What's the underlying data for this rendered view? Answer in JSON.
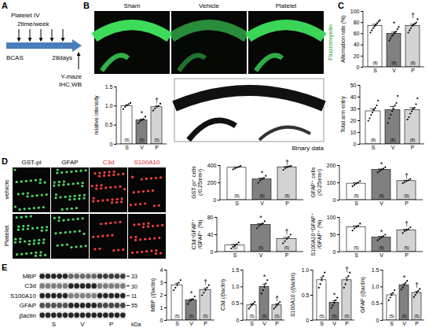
{
  "chart_data": [
    {
      "type": "bar",
      "y_label": "relative intensity",
      "categories": [
        "S",
        "V",
        "P"
      ],
      "values": [
        1.0,
        0.63,
        0.97
      ],
      "errors": [
        0.03,
        0.03,
        0.03
      ],
      "points": [
        [
          0.92,
          0.98,
          1.02,
          1.05,
          1.08
        ],
        [
          0.55,
          0.6,
          0.63,
          0.66,
          0.72
        ],
        [
          0.88,
          0.93,
          0.98,
          1.0,
          1.06
        ]
      ],
      "n_labels": [
        "(5)",
        "(5)",
        "(5)"
      ],
      "significance": [
        null,
        "*",
        "†"
      ],
      "colors": [
        "#ffffff",
        "#808080",
        "#d3d3d3"
      ],
      "ylim": [
        0,
        1.5
      ],
      "yticks": [
        0,
        0.5,
        {
          "value": 1,
          "label": "1.0"
        },
        1.5
      ]
    },
    {
      "type": "bar",
      "y_label": "Alternation rate (%)",
      "categories": [
        "S",
        "V",
        "P"
      ],
      "values": [
        74,
        60,
        74
      ],
      "errors": [
        3,
        3,
        3
      ],
      "points": [
        [
          62,
          66,
          70,
          73,
          76,
          79,
          82,
          84
        ],
        [
          48,
          52,
          56,
          58,
          62,
          64,
          68,
          72
        ],
        [
          62,
          66,
          70,
          74,
          76,
          78,
          80,
          86
        ]
      ],
      "n_labels": [
        "(8)",
        "(8)",
        "(8)"
      ],
      "significance": [
        null,
        "*",
        "†"
      ],
      "colors": [
        "#ffffff",
        "#808080",
        "#d3d3d3"
      ],
      "ylim": [
        0,
        100
      ],
      "yticks": [
        0,
        20,
        40,
        60,
        80,
        100
      ]
    },
    {
      "type": "bar",
      "y_label": "Total arm entry",
      "categories": [
        "S",
        "V",
        "P"
      ],
      "values": [
        28,
        29,
        29
      ],
      "errors": [
        2,
        3,
        2
      ],
      "points": [
        [
          20,
          22,
          25,
          27,
          29,
          31,
          33,
          37
        ],
        [
          18,
          22,
          25,
          28,
          30,
          33,
          35,
          41
        ],
        [
          21,
          23,
          26,
          28,
          30,
          31,
          34,
          39
        ]
      ],
      "n_labels": [
        "(8)",
        "(8)",
        "(8)"
      ],
      "significance": [
        null,
        null,
        null
      ],
      "colors": [
        "#ffffff",
        "#808080",
        "#d3d3d3"
      ],
      "ylim": [
        0,
        50
      ],
      "yticks": [
        0,
        10,
        20,
        30,
        40,
        50
      ]
    },
    {
      "type": "bar",
      "y_label": "GST-pi⁺ cells (/0.25mm²)",
      "categories": [
        "S",
        "V",
        "P"
      ],
      "values": [
        375,
        240,
        380
      ],
      "errors": [
        7,
        14,
        8
      ],
      "points": [
        [
          355,
          365,
          375,
          385,
          395
        ],
        [
          200,
          225,
          240,
          255,
          280
        ],
        [
          350,
          370,
          380,
          390,
          395
        ]
      ],
      "n_labels": [
        "(5)",
        "(5)",
        "(5)"
      ],
      "significance": [
        null,
        "*",
        "†"
      ],
      "colors": [
        "#ffffff",
        "#808080",
        "#d3d3d3"
      ],
      "ylim": [
        0,
        400
      ],
      "yticks": [
        0,
        200,
        400
      ]
    },
    {
      "type": "bar",
      "y_label": "GFAP⁺ cells (/0.25mm²)",
      "categories": [
        "S",
        "V",
        "P"
      ],
      "values": [
        95,
        175,
        110
      ],
      "errors": [
        5,
        5,
        4
      ],
      "points": [
        [
          80,
          88,
          95,
          102,
          110
        ],
        [
          160,
          168,
          175,
          182,
          190
        ],
        [
          98,
          104,
          110,
          116,
          122
        ]
      ],
      "n_labels": [
        "(5)",
        "(5)",
        "(5)"
      ],
      "significance": [
        null,
        "*",
        "†"
      ],
      "colors": [
        "#ffffff",
        "#808080",
        "#d3d3d3"
      ],
      "ylim": [
        0,
        200
      ],
      "yticks": [
        0,
        100,
        200
      ]
    },
    {
      "type": "bar",
      "y_label": "C3d⁺GFAP⁺/GFAP⁺ (%)",
      "categories": [
        "S",
        "V",
        "P"
      ],
      "values": [
        15,
        63,
        30
      ],
      "errors": [
        2.5,
        2.5,
        3.5
      ],
      "points": [
        [
          8,
          12,
          15,
          18,
          22
        ],
        [
          55,
          60,
          63,
          66,
          71
        ],
        [
          20,
          25,
          30,
          35,
          40
        ]
      ],
      "n_labels": [
        "(5)",
        "(5)",
        "(5)"
      ],
      "significance": [
        null,
        "*",
        "†"
      ],
      "colors": [
        "#ffffff",
        "#808080",
        "#d3d3d3"
      ],
      "ylim": [
        0,
        80
      ],
      "yticks": [
        0,
        40,
        80
      ]
    },
    {
      "type": "bar",
      "y_label": "S100A10⁺GFAP⁺/GFAP⁺ (%)",
      "categories": [
        "S",
        "V",
        "P"
      ],
      "values": [
        72,
        42,
        63
      ],
      "errors": [
        3.5,
        3,
        3
      ],
      "points": [
        [
          62,
          68,
          72,
          76,
          82
        ],
        [
          34,
          38,
          42,
          46,
          50
        ],
        [
          55,
          60,
          63,
          66,
          71
        ]
      ],
      "n_labels": [
        "(5)",
        "(5)",
        "(5)"
      ],
      "significance": [
        null,
        "*",
        "†"
      ],
      "colors": [
        "#ffffff",
        "#808080",
        "#d3d3d3"
      ],
      "ylim": [
        0,
        100
      ],
      "yticks": [
        0,
        50,
        100
      ]
    },
    {
      "type": "bar",
      "y_label": "MBP (/βactin)",
      "categories": [
        "S",
        "V",
        "P"
      ],
      "values": [
        2.8,
        1.6,
        2.4
      ],
      "errors": [
        0.15,
        0.1,
        0.15
      ],
      "points": [
        [
          2.4,
          2.6,
          2.8,
          3.0,
          3.2
        ],
        [
          1.3,
          1.5,
          1.6,
          1.7,
          1.9
        ],
        [
          2.0,
          2.2,
          2.4,
          2.6,
          2.8
        ]
      ],
      "n_labels": [
        "(5)",
        "(5)",
        "(5)"
      ],
      "significance": [
        null,
        "*",
        "†"
      ],
      "colors": [
        "#ffffff",
        "#808080",
        "#d3d3d3"
      ],
      "ylim": [
        0,
        4
      ],
      "yticks": [
        0,
        1,
        2,
        3,
        4
      ]
    },
    {
      "type": "bar",
      "y_label": "C3d (/βactin)",
      "categories": [
        "S",
        "V",
        "P"
      ],
      "values": [
        0.45,
        1.0,
        0.45
      ],
      "errors": [
        0.04,
        0.08,
        0.04
      ],
      "points": [
        [
          0.35,
          0.4,
          0.45,
          0.5,
          0.55
        ],
        [
          0.8,
          0.9,
          1.0,
          1.1,
          1.2
        ],
        [
          0.35,
          0.4,
          0.45,
          0.5,
          0.55
        ]
      ],
      "n_labels": [
        "(5)",
        "(5)",
        "(5)"
      ],
      "significance": [
        null,
        "*",
        "†"
      ],
      "colors": [
        "#ffffff",
        "#808080",
        "#d3d3d3"
      ],
      "ylim": [
        0,
        1.5
      ],
      "yticks": [
        0,
        0.5,
        {
          "value": 1,
          "label": "1.0"
        },
        1.5
      ]
    },
    {
      "type": "bar",
      "y_label": "S100A10 (/βactin)",
      "categories": [
        "S",
        "V",
        "P"
      ],
      "values": [
        0.8,
        0.35,
        0.8
      ],
      "errors": [
        0.05,
        0.04,
        0.05
      ],
      "points": [
        [
          0.65,
          0.72,
          0.8,
          0.88,
          0.95
        ],
        [
          0.25,
          0.3,
          0.35,
          0.4,
          0.45
        ],
        [
          0.65,
          0.72,
          0.8,
          0.88,
          0.95
        ]
      ],
      "n_labels": [
        "(5)",
        "(5)",
        "(5)"
      ],
      "significance": [
        null,
        "*",
        "†"
      ],
      "colors": [
        "#ffffff",
        "#808080",
        "#d3d3d3"
      ],
      "ylim": [
        0,
        1.0
      ],
      "yticks": [
        0,
        0.5,
        {
          "value": 1,
          "label": "1.0"
        }
      ]
    },
    {
      "type": "bar",
      "y_label": "GFAP (/βactin)",
      "categories": [
        "S",
        "V",
        "P"
      ],
      "values": [
        0.75,
        1.05,
        0.82
      ],
      "errors": [
        0.05,
        0.04,
        0.04
      ],
      "points": [
        [
          0.6,
          0.68,
          0.75,
          0.82,
          0.9
        ],
        [
          0.92,
          0.98,
          1.05,
          1.12,
          1.18
        ],
        [
          0.7,
          0.76,
          0.82,
          0.88,
          0.94
        ]
      ],
      "n_labels": [
        "(5)",
        "(5)",
        "(5)"
      ],
      "significance": [
        null,
        "*",
        "†"
      ],
      "colors": [
        "#ffffff",
        "#808080",
        "#d3d3d3"
      ],
      "ylim": [
        0,
        1.5
      ],
      "yticks": [
        0,
        0.5,
        {
          "value": 1,
          "label": "1.0"
        },
        1.5
      ]
    }
  ],
  "figure": {
    "panel_labels": [
      "A",
      "B",
      "C",
      "D",
      "E"
    ],
    "schematic": {
      "treatment": "Platelet IV",
      "frequency": "2time/week",
      "model": "BCAS",
      "duration": "28days",
      "endpoints": [
        "Y-maze",
        "IHC,WB"
      ]
    },
    "fluoromyelin": {
      "groups": [
        "Sham",
        "Vehicle",
        "Platelet"
      ],
      "stain": "Fluoromyelin",
      "binary_label": "Binary data"
    },
    "immunostaining": {
      "stains": [
        "GST-pi",
        "GFAP",
        "C3d",
        "S100A10"
      ],
      "groups": [
        "vehicle",
        "Platelet"
      ]
    },
    "western_blot": {
      "rows": [
        {
          "label": "MBP",
          "size": 33
        },
        {
          "label": "C3d",
          "size": 30
        },
        {
          "label": "S100A10",
          "size": 11
        },
        {
          "label": "GFAP",
          "size": 55
        },
        {
          "label": "βactin",
          "size": null
        }
      ],
      "lanes": [
        "S",
        "V",
        "P"
      ],
      "unit": "kDa"
    }
  }
}
